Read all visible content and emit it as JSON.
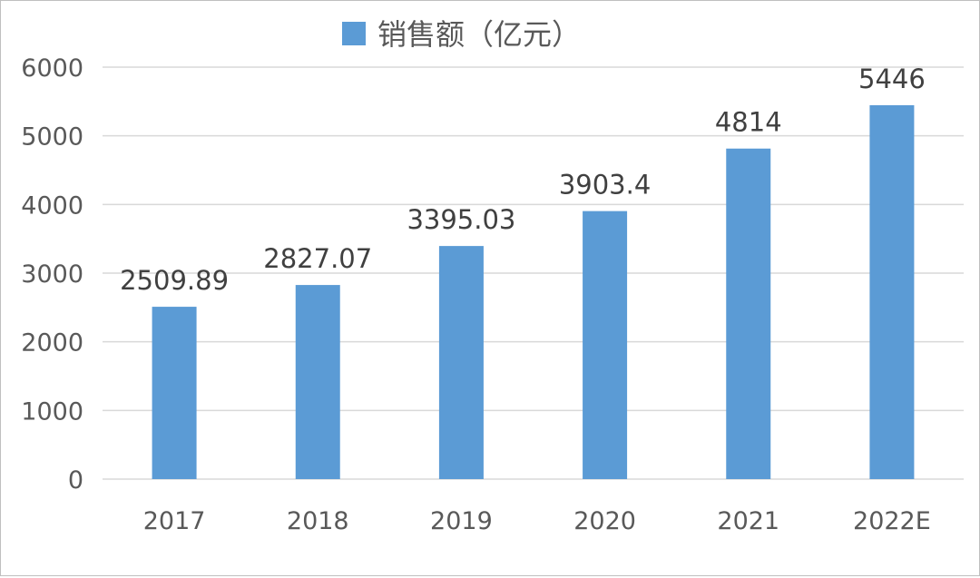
{
  "chart_data": {
    "type": "bar",
    "categories": [
      "2017",
      "2018",
      "2019",
      "2020",
      "2021",
      "2022E"
    ],
    "series": [
      {
        "name": "销售额（亿元）",
        "values": [
          2509.89,
          2827.07,
          3395.03,
          3903.4,
          4814,
          5446
        ],
        "data_labels": [
          "2509.89",
          "2827.07",
          "3395.03",
          "3903.4",
          "4814",
          "5446"
        ],
        "color": "#5b9bd5"
      }
    ],
    "ylim": [
      0,
      6000
    ],
    "yticks": [
      0,
      1000,
      2000,
      3000,
      4000,
      5000,
      6000
    ],
    "grid": true,
    "legend_position": "top-center",
    "colors": {
      "bar": "#5b9bd5",
      "grid": "#d9d9d9",
      "axis_text": "#595959"
    }
  }
}
